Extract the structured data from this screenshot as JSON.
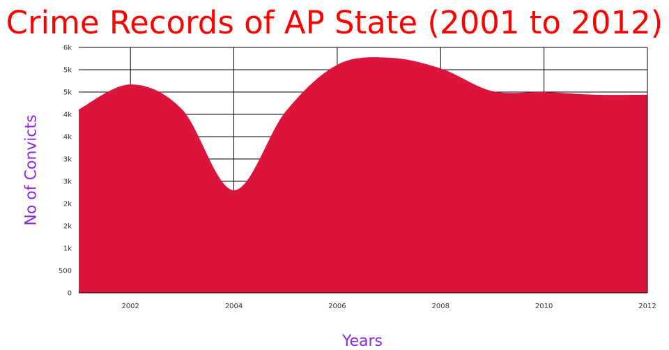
{
  "chart_data": {
    "type": "area",
    "title": "Crime Records of AP State (2001 to 2012)",
    "xlabel": "Years",
    "ylabel": "No of Convicts",
    "x": [
      2001,
      2002,
      2003,
      2004,
      2005,
      2006,
      2007,
      2008,
      2009,
      2010,
      2011,
      2012
    ],
    "values": [
      4110,
      4670,
      4110,
      2300,
      4060,
      5110,
      5270,
      5030,
      4520,
      4500,
      4440,
      4440
    ],
    "xlim": [
      2001,
      2012
    ],
    "ylim": [
      0,
      5500
    ],
    "x_ticks": [
      2002,
      2004,
      2006,
      2008,
      2010,
      2012
    ],
    "x_tick_labels": [
      "2002",
      "2004",
      "2006",
      "2008",
      "2010",
      "2012"
    ],
    "y_ticks": [
      0,
      500,
      1000,
      1500,
      2000,
      2500,
      3000,
      3500,
      4000,
      4500,
      5000,
      5500
    ],
    "y_tick_labels": [
      "0",
      "500",
      "1k",
      "2k",
      "2k",
      "3k",
      "3k",
      "4k",
      "4k",
      "5k",
      "5k",
      "6k"
    ],
    "grid": true,
    "colors": {
      "area": "#dc143c",
      "title": "#ff0000",
      "axis_labels": "#8a2be2",
      "grid": "#000000"
    }
  }
}
